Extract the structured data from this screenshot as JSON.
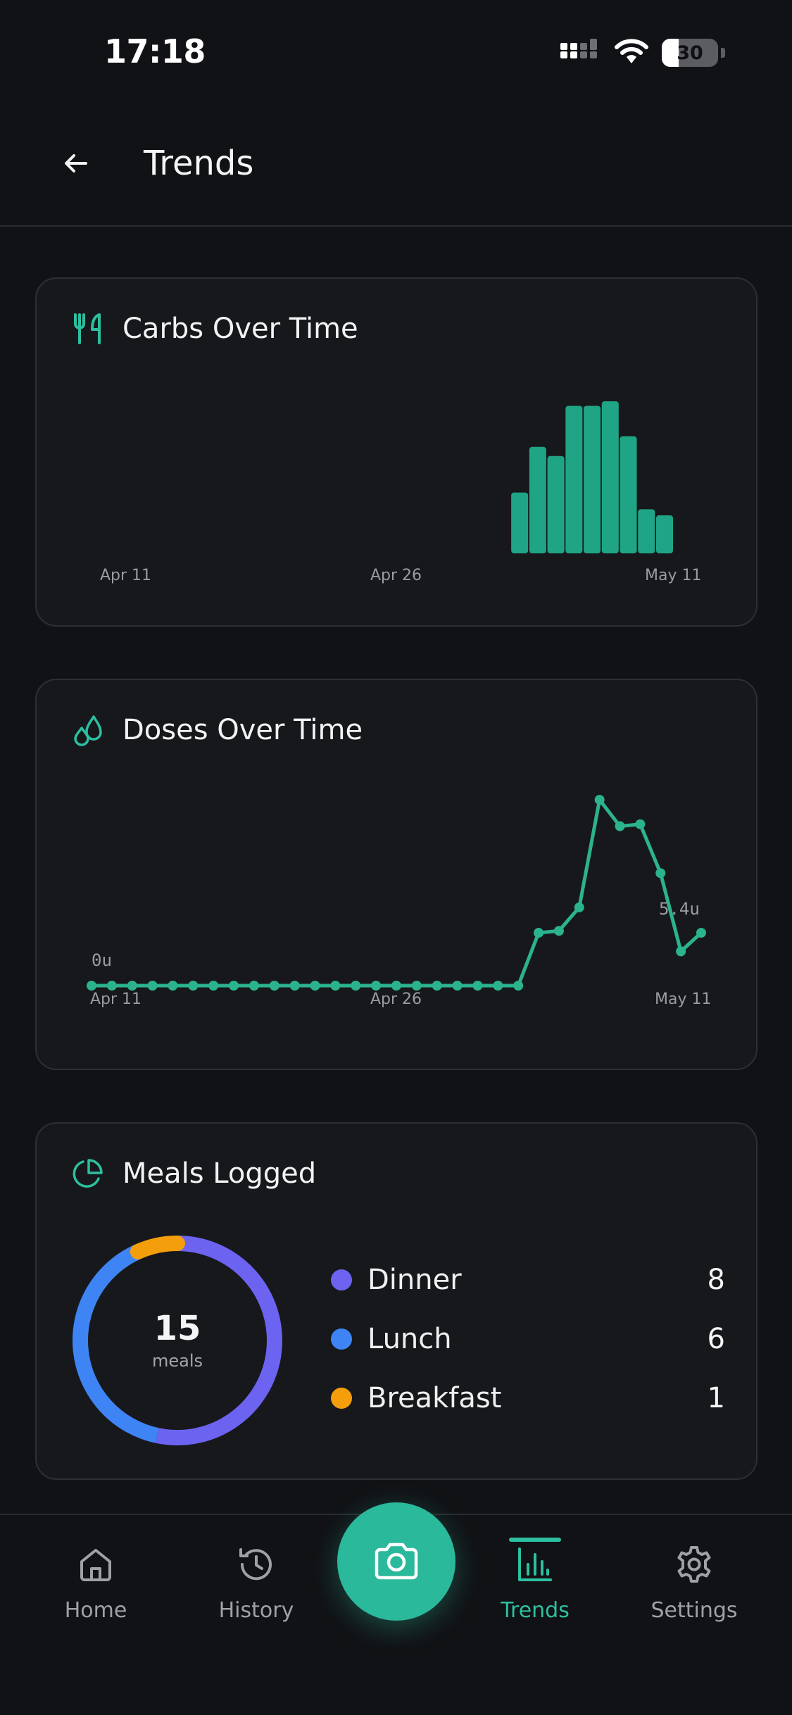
{
  "status_bar": {
    "time": "17:18",
    "battery": "30"
  },
  "header": {
    "title": "Trends"
  },
  "colors": {
    "accent": "#2cc0a0",
    "bar": "#1fa585",
    "line": "#2bb38e",
    "dinner": "#6c63f0",
    "lunch": "#3f84f5",
    "breakfast": "#f59e0b"
  },
  "carbs_card": {
    "title": "Carbs Over Time",
    "icon": "fork-knife-icon",
    "x_labels": [
      "Apr 11",
      "Apr 26",
      "May 11"
    ]
  },
  "doses_card": {
    "title": "Doses Over Time",
    "icon": "droplets-icon",
    "y_min_label": "0u",
    "end_label": "5.4u",
    "x_labels": [
      "Apr 11",
      "Apr 26",
      "May 11"
    ]
  },
  "meals_card": {
    "title": "Meals Logged",
    "icon": "pie-chart-icon",
    "total": "15",
    "unit": "meals",
    "items": [
      {
        "label": "Dinner",
        "value": "8",
        "color": "#6c63f0"
      },
      {
        "label": "Lunch",
        "value": "6",
        "color": "#3f84f5"
      },
      {
        "label": "Breakfast",
        "value": "1",
        "color": "#f59e0b"
      }
    ]
  },
  "nav": {
    "home": "Home",
    "history": "History",
    "trends": "Trends",
    "settings": "Settings"
  },
  "chart_data": [
    {
      "type": "bar",
      "title": "Carbs Over Time",
      "x_ticks": [
        "Apr 11",
        "Apr 26",
        "May 11"
      ],
      "categories": [
        "Apr 11",
        "Apr 12",
        "Apr 13",
        "Apr 14",
        "Apr 15",
        "Apr 16",
        "Apr 17",
        "Apr 18",
        "Apr 19",
        "Apr 20",
        "Apr 21",
        "Apr 22",
        "Apr 23",
        "Apr 24",
        "Apr 25",
        "Apr 26",
        "Apr 27",
        "Apr 28",
        "Apr 29",
        "Apr 30",
        "May 1",
        "May 2",
        "May 3",
        "May 4",
        "May 5",
        "May 6",
        "May 7",
        "May 8",
        "May 9",
        "May 10",
        "May 11"
      ],
      "values": [
        0,
        0,
        0,
        0,
        0,
        0,
        0,
        0,
        0,
        0,
        0,
        0,
        0,
        0,
        0,
        0,
        0,
        0,
        0,
        0,
        0,
        0,
        40,
        70,
        64,
        97,
        97,
        100,
        77,
        29,
        25
      ],
      "ylim": [
        0,
        100
      ]
    },
    {
      "type": "line",
      "title": "Doses Over Time",
      "x_ticks": [
        "Apr 11",
        "Apr 26",
        "May 11"
      ],
      "categories": [
        "Apr 11",
        "Apr 12",
        "Apr 13",
        "Apr 14",
        "Apr 15",
        "Apr 16",
        "Apr 17",
        "Apr 18",
        "Apr 19",
        "Apr 20",
        "Apr 21",
        "Apr 22",
        "Apr 23",
        "Apr 24",
        "Apr 25",
        "Apr 26",
        "Apr 27",
        "Apr 28",
        "Apr 29",
        "Apr 30",
        "May 1",
        "May 2",
        "May 3",
        "May 4",
        "May 5",
        "May 6",
        "May 7",
        "May 8",
        "May 9",
        "May 10",
        "May 11"
      ],
      "values": [
        0,
        0,
        0,
        0,
        0,
        0,
        0,
        0,
        0,
        0,
        0,
        0,
        0,
        0,
        0,
        0,
        0,
        0,
        0,
        0,
        0,
        0,
        5.4,
        5.6,
        8.0,
        19.0,
        16.3,
        16.5,
        11.5,
        3.5,
        5.4
      ],
      "ylim": [
        0,
        19
      ],
      "labels": [
        "0u",
        "5.4u"
      ]
    },
    {
      "type": "pie",
      "title": "Meals Logged",
      "categories": [
        "Dinner",
        "Lunch",
        "Breakfast"
      ],
      "values": [
        8,
        6,
        1
      ],
      "center_label": "15 meals"
    }
  ]
}
